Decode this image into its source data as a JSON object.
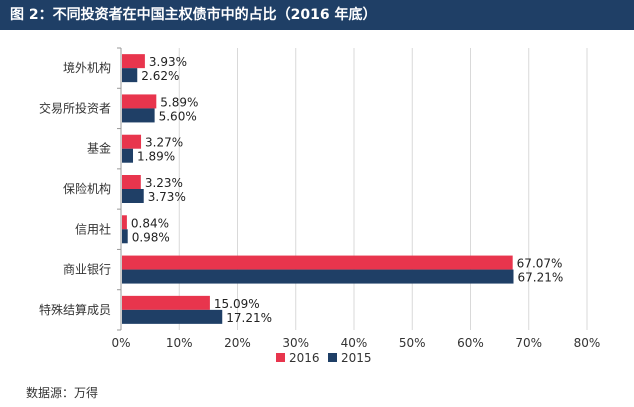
{
  "title": "图 2：不同投资者在中国主权债市中的占比（2016 年底）",
  "source": "数据源：万得",
  "colors": {
    "s2016": "#e8354d",
    "s2015": "#1f3f66",
    "title_bg": "#1f3f66",
    "grid": "#d9d9d9"
  },
  "chart_data": {
    "type": "bar",
    "orientation": "horizontal",
    "categories": [
      "境外机构",
      "交易所投资者",
      "基金",
      "保险机构",
      "信用社",
      "商业银行",
      "特殊结算成员"
    ],
    "series": [
      {
        "name": "2016",
        "values": [
          3.93,
          5.89,
          3.27,
          3.23,
          0.84,
          67.07,
          15.09
        ],
        "labels": [
          "3.93%",
          "5.89%",
          "3.27%",
          "3.23%",
          "0.84%",
          "67.07%",
          "15.09%"
        ]
      },
      {
        "name": "2015",
        "values": [
          2.62,
          5.6,
          1.89,
          3.73,
          0.98,
          67.21,
          17.21
        ],
        "labels": [
          "2.62%",
          "5.60%",
          "1.89%",
          "3.73%",
          "0.98%",
          "67.21%",
          "17.21%"
        ]
      }
    ],
    "xlim": [
      0,
      80
    ],
    "xticks": [
      0,
      10,
      20,
      30,
      40,
      50,
      60,
      70,
      80
    ],
    "xtick_labels": [
      "0%",
      "10%",
      "20%",
      "30%",
      "40%",
      "50%",
      "60%",
      "70%",
      "80%"
    ],
    "grid": true,
    "legend": "bottom-center"
  }
}
